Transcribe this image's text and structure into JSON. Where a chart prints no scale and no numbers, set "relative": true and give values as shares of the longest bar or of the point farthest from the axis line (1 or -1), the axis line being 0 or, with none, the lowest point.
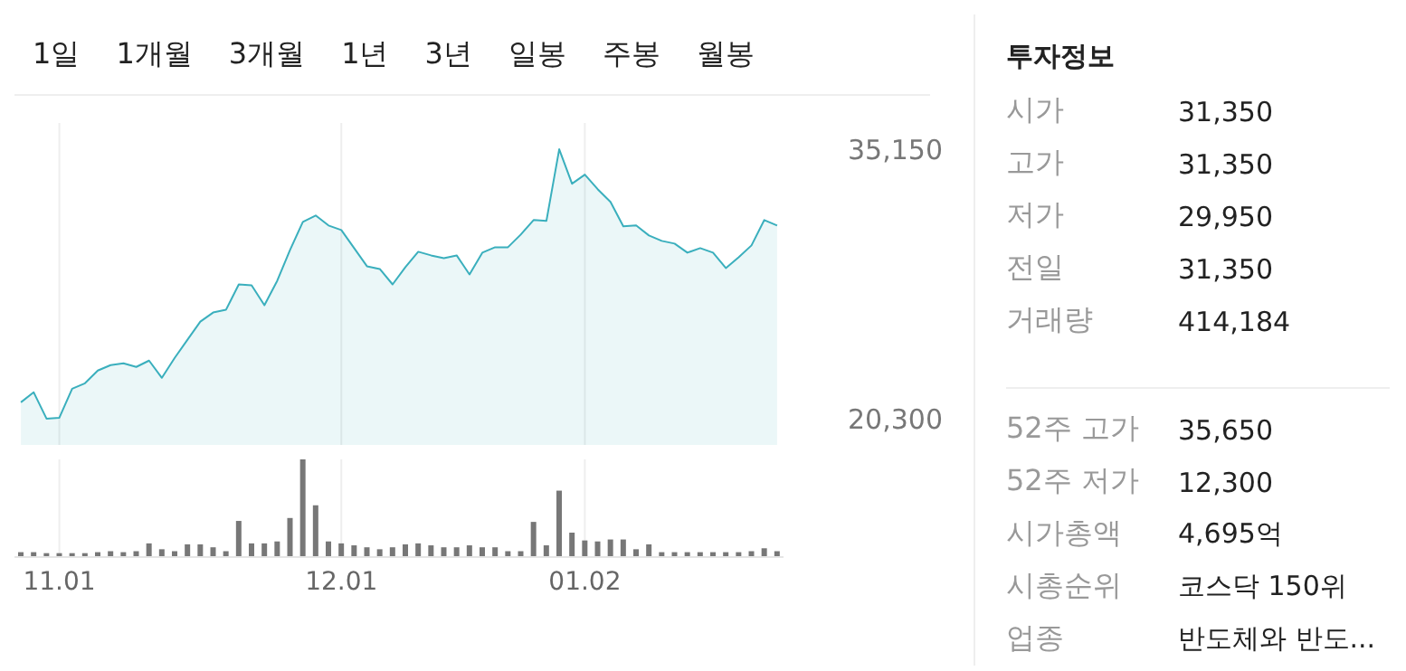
{
  "chart_data": [
    {
      "type": "area",
      "annotations": [
        "1일",
        "1개월",
        "3개월",
        "1년",
        "3년",
        "일봉",
        "주봉",
        "월봉"
      ],
      "categories": [
        null,
        null,
        null,
        "11.01",
        null,
        null,
        null,
        null,
        null,
        null,
        null,
        null,
        null,
        null,
        null,
        null,
        null,
        null,
        null,
        null,
        null,
        null,
        null,
        null,
        null,
        "12.01",
        null,
        null,
        null,
        null,
        null,
        null,
        null,
        null,
        null,
        null,
        null,
        null,
        null,
        null,
        null,
        null,
        null,
        null,
        "01.02",
        null,
        null,
        null,
        null,
        null,
        null,
        null,
        null,
        null,
        null,
        null,
        null,
        null,
        null,
        null
      ],
      "series": [
        {
          "color": "#3aafbd",
          "values": [
            21200,
            21750,
            20300,
            20350,
            21950,
            22250,
            22950,
            23250,
            23350,
            23150,
            23500,
            22550,
            23650,
            24650,
            25650,
            26150,
            26300,
            27700,
            27650,
            26550,
            27900,
            29600,
            31150,
            31500,
            30950,
            30700,
            29700,
            28700,
            28550,
            27700,
            28650,
            29500,
            29300,
            29150,
            29300,
            28250,
            29450,
            29750,
            29750,
            30450,
            31250,
            31200,
            35150,
            33250,
            33750,
            32950,
            32250,
            30900,
            30950,
            30400,
            30100,
            29950,
            29450,
            29700,
            29450,
            28600,
            29200,
            29850,
            31250,
            30950
          ]
        }
      ],
      "ylim": [
        18850,
        36600
      ],
      "yticks": [
        {
          "value": 35150,
          "label": "35,150"
        },
        {
          "value": 20300,
          "label": "20,300"
        }
      ],
      "grid": "x",
      "tick_labels": "y"
    },
    {
      "type": "bar",
      "relative": true,
      "color": "#777777",
      "grid": "x",
      "tick_labels": "x",
      "categories": [
        null,
        null,
        null,
        "11.01",
        null,
        null,
        null,
        null,
        null,
        null,
        null,
        null,
        null,
        null,
        null,
        null,
        null,
        null,
        null,
        null,
        null,
        null,
        null,
        null,
        null,
        "12.01",
        null,
        null,
        null,
        null,
        null,
        null,
        null,
        null,
        null,
        null,
        null,
        null,
        null,
        null,
        null,
        null,
        null,
        null,
        "01.02",
        null,
        null,
        null,
        null,
        null,
        null,
        null,
        null,
        null,
        null,
        null,
        null,
        null,
        null,
        null
      ],
      "values": [
        0.05,
        0.05,
        0.04,
        0.04,
        0.04,
        0.04,
        0.05,
        0.06,
        0.05,
        0.06,
        0.14,
        0.08,
        0.06,
        0.13,
        0.13,
        0.1,
        0.06,
        0.37,
        0.14,
        0.14,
        0.16,
        0.4,
        1,
        0.53,
        0.16,
        0.14,
        0.12,
        0.1,
        0.08,
        0.1,
        0.13,
        0.14,
        0.12,
        0.1,
        0.1,
        0.12,
        0.1,
        0.1,
        0.06,
        0.06,
        0.36,
        0.12,
        0.68,
        0.25,
        0.17,
        0.16,
        0.18,
        0.18,
        0.08,
        0.13,
        0.05,
        0.05,
        0.05,
        0.05,
        0.05,
        0.05,
        0.05,
        0.06,
        0.09,
        0.06
      ]
    },
    {
      "type": "other",
      "title": "투자정보",
      "annotations": [
        "시가",
        "31,350",
        "고가",
        "31,350",
        "저가",
        "29,950",
        "전일",
        "31,350",
        "거래량",
        "414,184",
        "52주 고가",
        "35,650",
        "52주 저가",
        "12,300",
        "시가총액",
        "4,695억",
        "시총순위",
        "코스닥 150위",
        "업종",
        "반도체와 반도..."
      ]
    }
  ]
}
